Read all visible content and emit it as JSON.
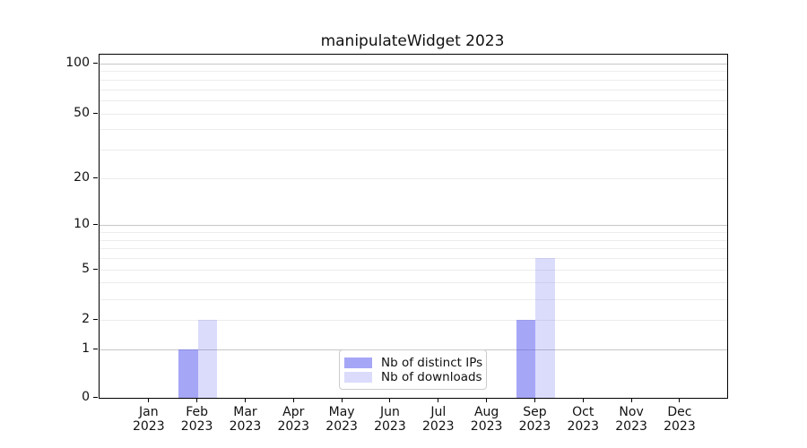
{
  "chart_data": {
    "type": "bar",
    "title": "manipulateWidget 2023",
    "categories": [
      "Jan 2023",
      "Feb 2023",
      "Mar 2023",
      "Apr 2023",
      "May 2023",
      "Jun 2023",
      "Jul 2023",
      "Aug 2023",
      "Sep 2023",
      "Oct 2023",
      "Nov 2023",
      "Dec 2023"
    ],
    "series": [
      {
        "name": "Nb of distinct IPs",
        "color": "rgba(85,85,240,0.52)",
        "values": [
          0,
          1,
          0,
          0,
          0,
          0,
          0,
          0,
          2,
          0,
          0,
          0
        ]
      },
      {
        "name": "Nb of downloads",
        "color": "rgba(85,85,240,0.21)",
        "values": [
          0,
          2,
          0,
          0,
          0,
          0,
          0,
          0,
          6,
          0,
          0,
          0
        ]
      }
    ],
    "y_axis": {
      "scale": "log10(1+x)",
      "ticks": [
        0,
        1,
        2,
        5,
        10,
        20,
        50,
        100
      ],
      "ylim": [
        0,
        113
      ],
      "major_gridlines": [
        1,
        10,
        100
      ],
      "minor_gridlines": [
        2,
        3,
        4,
        5,
        6,
        7,
        8,
        9,
        20,
        30,
        40,
        50,
        60,
        70,
        80,
        90
      ]
    },
    "legend": {
      "position": "bottom-center"
    },
    "colors": {
      "bar_ips": "rgba(85,85,240,0.52)",
      "bar_downloads": "rgba(85,85,240,0.21)",
      "major_grid": "#c6c6c6",
      "minor_grid": "#ececec",
      "spine": "#000000",
      "legend_border": "#cccccc"
    }
  }
}
